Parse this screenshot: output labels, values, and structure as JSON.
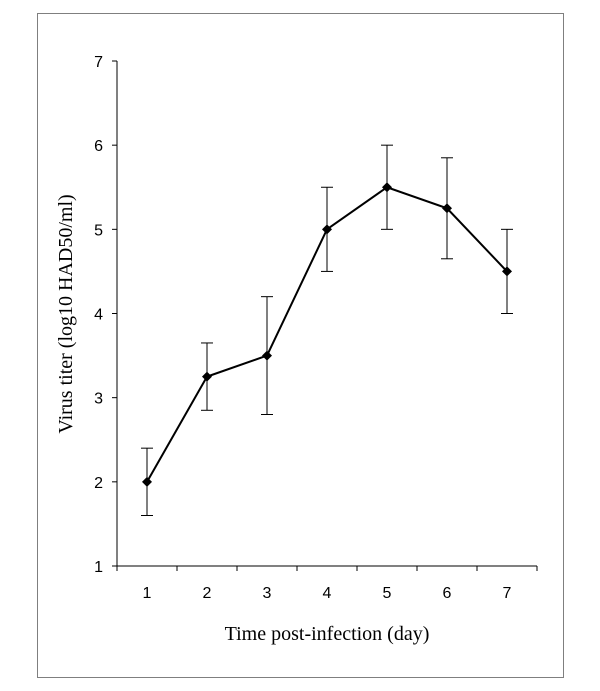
{
  "chart_data": {
    "type": "line",
    "title": "",
    "xlabel": "Time post-infection (day)",
    "ylabel": "Virus titer (log10 HAD50/ml)",
    "xlim": [
      0.5,
      7.5
    ],
    "ylim": [
      1,
      7
    ],
    "x_ticks": [
      "1",
      "2",
      "3",
      "4",
      "5",
      "6",
      "7"
    ],
    "y_ticks": [
      "1",
      "2",
      "3",
      "4",
      "5",
      "6",
      "7"
    ],
    "grid": false,
    "legend": "none",
    "series": [
      {
        "x": [
          1,
          2,
          3,
          4,
          5,
          6,
          7
        ],
        "y": [
          2.0,
          3.25,
          3.5,
          5.0,
          5.5,
          5.25,
          4.5
        ],
        "error": [
          0.4,
          0.4,
          0.7,
          0.5,
          0.5,
          0.6,
          0.5
        ],
        "color": "#000000",
        "marker": "diamond"
      }
    ]
  }
}
